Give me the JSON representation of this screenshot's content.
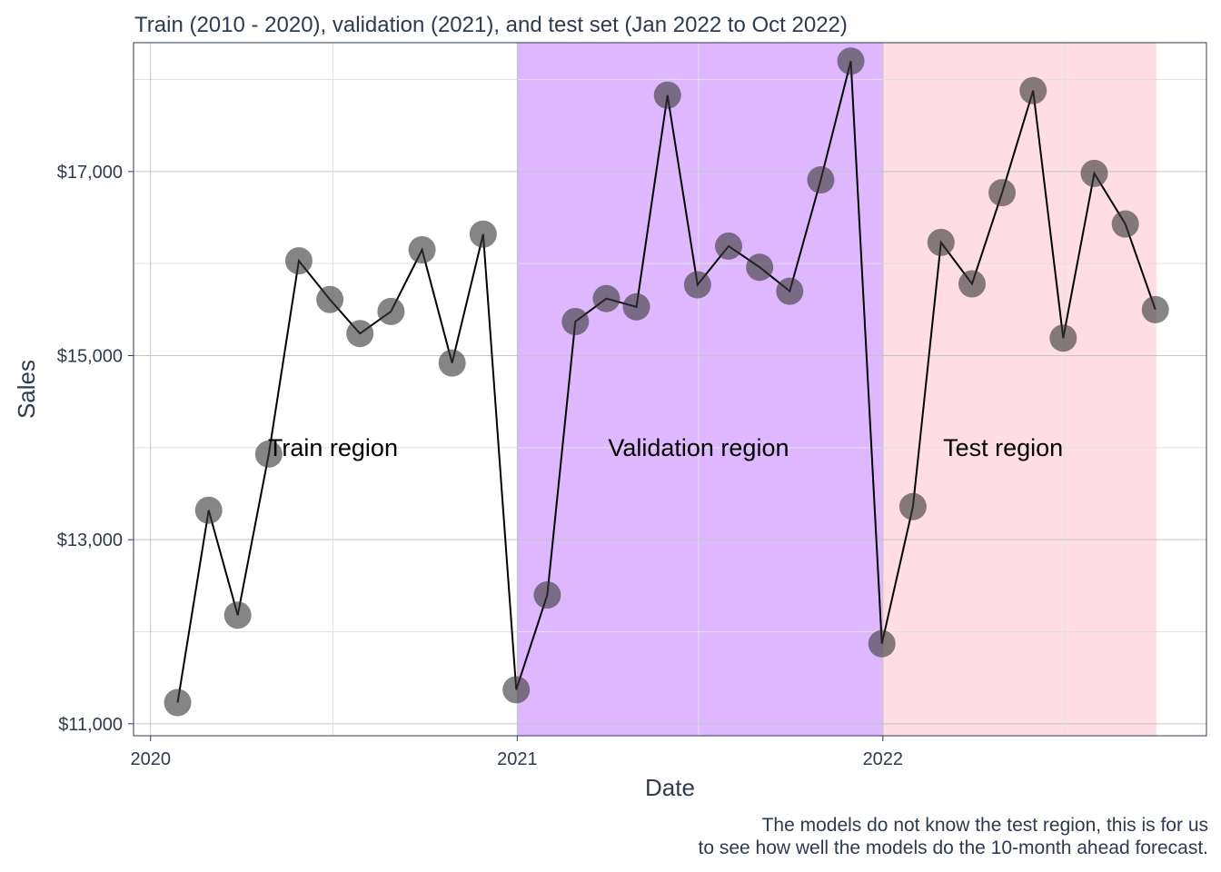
{
  "chart_data": {
    "type": "line",
    "title": "Train (2010 - 2020), validation (2021), and test set (Jan 2022 to Oct 2022)",
    "xlabel": "Date",
    "ylabel": "Sales",
    "caption_lines": [
      "The models do not know the test region, this is for us",
      "to see how well the models do the 10-month ahead forecast."
    ],
    "x_ticks": [
      "2020",
      "2021",
      "2022"
    ],
    "y_ticks": [
      "$11,000",
      "$13,000",
      "$15,000",
      "$17,000"
    ],
    "y_tick_values": [
      11000,
      13000,
      15000,
      17000
    ],
    "ylim": [
      10870,
      18400
    ],
    "xlim": [
      "2019-12-15",
      "2022-11-20"
    ],
    "grid": true,
    "regions": [
      {
        "label": "Train region",
        "start": null,
        "end": null,
        "color": "#ffffff",
        "label_date": "2020-07-01",
        "label_value": 14000
      },
      {
        "label": "Validation region",
        "start": "2021-01-01",
        "end": "2022-01-01",
        "color": "#dfb7fe",
        "label_date": "2021-07-01",
        "label_value": 14000
      },
      {
        "label": "Test region",
        "start": "2022-01-01",
        "end": "2022-10-01",
        "color": "#ffdde4",
        "label_date": "2022-05-01",
        "label_value": 14000
      }
    ],
    "series": [
      {
        "dates": [
          "2020-01-28",
          "2020-02-28",
          "2020-03-28",
          "2020-04-28",
          "2020-05-28",
          "2020-06-28",
          "2020-07-28",
          "2020-08-28",
          "2020-09-28",
          "2020-10-28",
          "2020-11-28",
          "2020-12-31",
          "2021-01-31",
          "2021-02-28",
          "2021-03-31",
          "2021-04-30",
          "2021-05-31",
          "2021-06-30",
          "2021-07-31",
          "2021-08-31",
          "2021-09-30",
          "2021-10-31",
          "2021-11-30",
          "2021-12-31",
          "2022-01-31",
          "2022-02-28",
          "2022-03-31",
          "2022-04-30",
          "2022-05-31",
          "2022-06-30",
          "2022-07-31",
          "2022-08-31",
          "2022-09-30"
        ],
        "values": [
          11230,
          13320,
          12180,
          13930,
          16030,
          15610,
          15240,
          15480,
          16150,
          14920,
          16320,
          11370,
          12400,
          15370,
          15620,
          15530,
          17830,
          15770,
          16190,
          15960,
          15700,
          16910,
          18200,
          11870,
          13360,
          16230,
          15780,
          16770,
          17880,
          15190,
          16980,
          16430,
          15500
        ]
      }
    ],
    "marker_color": "#3a3a3a",
    "line_color": "#000000"
  }
}
